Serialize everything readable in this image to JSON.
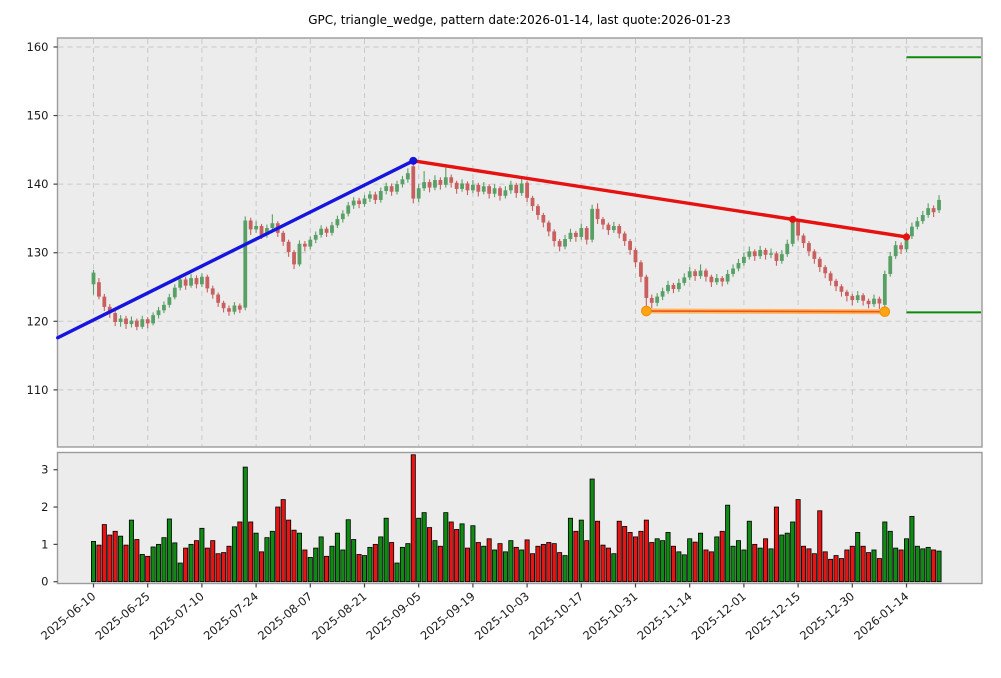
{
  "title": "GPC, triangle_wedge, pattern date:2026-01-14, last quote:2026-01-23",
  "chart_data": {
    "type": "candlestick",
    "symbol": "GPC",
    "pattern": "triangle_wedge",
    "pattern_date": "2026-01-14",
    "last_quote_date": "2026-01-23",
    "price_axis": {
      "ticks": [
        110,
        120,
        130,
        140,
        150,
        160
      ],
      "ylim": [
        101.6,
        161.3
      ]
    },
    "volume_axis": {
      "ticks": [
        0,
        1,
        2,
        3
      ],
      "ylim": [
        -0.05,
        3.46
      ]
    },
    "x_tick_labels": [
      "2025-06-10",
      "2025-06-25",
      "2025-07-10",
      "2025-07-24",
      "2025-08-07",
      "2025-08-21",
      "2025-09-05",
      "2025-09-19",
      "2025-10-03",
      "2025-10-17",
      "2025-10-31",
      "2025-11-14",
      "2025-12-01",
      "2025-12-15",
      "2025-12-30",
      "2026-01-14"
    ],
    "x_tick_day_indices": [
      0,
      10,
      20,
      30,
      40,
      50,
      60,
      70,
      80,
      90,
      100,
      110,
      120,
      130,
      140,
      150
    ],
    "grid": "dashed, price panel only",
    "legend": "none",
    "candles_format": [
      "open",
      "high",
      "low",
      "close",
      "volume"
    ],
    "candles": [
      [
        125.4,
        127.5,
        123.9,
        127.1,
        1.08
      ],
      [
        125.7,
        126.3,
        123.2,
        123.6,
        0.98
      ],
      [
        123.6,
        124.0,
        121.5,
        122.1,
        1.53
      ],
      [
        122.1,
        122.5,
        120.5,
        121.2,
        1.25
      ],
      [
        121.2,
        121.5,
        119.3,
        119.9,
        1.35
      ],
      [
        119.9,
        120.9,
        119.2,
        120.4,
        1.22
      ],
      [
        120.4,
        120.8,
        118.9,
        119.6,
        0.98
      ],
      [
        119.6,
        120.7,
        119.1,
        120.1,
        1.65
      ],
      [
        120.1,
        120.4,
        118.7,
        119.2,
        1.13
      ],
      [
        119.2,
        120.8,
        118.9,
        120.3,
        0.73
      ],
      [
        120.3,
        120.6,
        119.0,
        119.7,
        0.68
      ],
      [
        119.7,
        121.3,
        119.4,
        120.9,
        0.93
      ],
      [
        120.9,
        122.1,
        120.4,
        121.6,
        1.0
      ],
      [
        121.6,
        122.9,
        121.2,
        122.4,
        1.18
      ],
      [
        122.4,
        124.0,
        122.0,
        123.5,
        1.68
      ],
      [
        123.5,
        125.4,
        123.2,
        124.9,
        1.04
      ],
      [
        124.9,
        126.6,
        124.5,
        126.1,
        0.5
      ],
      [
        126.1,
        126.5,
        124.6,
        125.2,
        0.9
      ],
      [
        125.2,
        126.9,
        124.9,
        126.3,
        1.0
      ],
      [
        126.3,
        126.7,
        124.8,
        125.4,
        1.1
      ],
      [
        125.4,
        127.0,
        125.0,
        126.5,
        1.43
      ],
      [
        126.5,
        126.8,
        124.2,
        124.8,
        0.9
      ],
      [
        124.8,
        125.2,
        123.3,
        123.9,
        1.1
      ],
      [
        123.9,
        124.2,
        122.1,
        122.7,
        0.75
      ],
      [
        122.7,
        123.0,
        121.3,
        121.9,
        0.78
      ],
      [
        121.9,
        122.3,
        120.8,
        121.4,
        0.95
      ],
      [
        121.4,
        122.8,
        121.0,
        122.3,
        1.47
      ],
      [
        122.3,
        122.6,
        121.2,
        121.7,
        1.6
      ],
      [
        122.0,
        135.3,
        121.6,
        134.7,
        3.07
      ],
      [
        134.7,
        135.1,
        132.6,
        133.4,
        1.6
      ],
      [
        133.4,
        134.6,
        132.9,
        133.9,
        1.3
      ],
      [
        133.9,
        134.2,
        132.0,
        132.6,
        0.8
      ],
      [
        132.6,
        134.1,
        132.2,
        133.6,
        1.18
      ],
      [
        133.6,
        135.6,
        133.2,
        134.3,
        1.35
      ],
      [
        134.3,
        134.6,
        132.3,
        132.9,
        2.0
      ],
      [
        132.9,
        133.2,
        131.0,
        131.6,
        2.2
      ],
      [
        131.6,
        131.9,
        129.4,
        130.1,
        1.65
      ],
      [
        130.1,
        130.4,
        127.6,
        128.3,
        1.38
      ],
      [
        128.3,
        131.8,
        128.0,
        131.3,
        1.3
      ],
      [
        131.3,
        131.7,
        130.2,
        130.9,
        0.85
      ],
      [
        130.9,
        132.4,
        130.5,
        131.9,
        0.65
      ],
      [
        131.9,
        133.1,
        131.4,
        132.6,
        0.9
      ],
      [
        132.6,
        134.0,
        132.2,
        133.5,
        1.2
      ],
      [
        133.5,
        133.8,
        132.3,
        132.9,
        0.68
      ],
      [
        132.9,
        134.5,
        132.5,
        134.0,
        0.95
      ],
      [
        134.0,
        135.4,
        133.6,
        134.9,
        1.3
      ],
      [
        134.9,
        136.2,
        134.4,
        135.7,
        0.85
      ],
      [
        135.7,
        137.4,
        135.3,
        136.9,
        1.66
      ],
      [
        136.9,
        138.1,
        136.4,
        137.6,
        1.13
      ],
      [
        137.6,
        138.0,
        136.5,
        137.1,
        0.73
      ],
      [
        137.1,
        138.4,
        136.7,
        137.9,
        0.7
      ],
      [
        137.9,
        139.0,
        137.4,
        138.5,
        0.92
      ],
      [
        138.5,
        138.9,
        137.1,
        137.7,
        1.0
      ],
      [
        137.7,
        139.5,
        137.3,
        139.0,
        1.2
      ],
      [
        139.0,
        140.2,
        138.5,
        139.7,
        1.7
      ],
      [
        139.7,
        140.1,
        138.3,
        138.9,
        1.05
      ],
      [
        138.9,
        140.5,
        138.5,
        140.0,
        0.5
      ],
      [
        140.0,
        141.2,
        139.5,
        140.7,
        0.92
      ],
      [
        140.7,
        142.3,
        140.2,
        141.6,
        1.02
      ],
      [
        142.6,
        143.6,
        137.2,
        137.9,
        3.4
      ],
      [
        137.9,
        140.0,
        137.4,
        139.4,
        1.7
      ],
      [
        139.4,
        141.9,
        139.0,
        140.3,
        1.85
      ],
      [
        140.3,
        140.7,
        138.8,
        139.5,
        1.45
      ],
      [
        139.5,
        141.3,
        139.1,
        140.6,
        1.1
      ],
      [
        140.6,
        141.0,
        139.2,
        139.9,
        0.95
      ],
      [
        139.9,
        142.4,
        139.5,
        141.0,
        1.85
      ],
      [
        141.0,
        141.4,
        139.5,
        140.2,
        1.6
      ],
      [
        140.2,
        140.5,
        138.6,
        139.3,
        1.4
      ],
      [
        139.3,
        140.7,
        138.9,
        140.1,
        1.55
      ],
      [
        140.1,
        140.4,
        138.4,
        139.1,
        0.9
      ],
      [
        139.1,
        140.6,
        138.7,
        139.9,
        1.5
      ],
      [
        139.9,
        140.2,
        138.2,
        138.9,
        1.05
      ],
      [
        138.9,
        140.3,
        138.5,
        139.7,
        0.95
      ],
      [
        139.7,
        140.0,
        137.9,
        138.6,
        1.15
      ],
      [
        138.6,
        140.0,
        138.1,
        139.4,
        0.85
      ],
      [
        139.4,
        139.7,
        137.6,
        138.3,
        1.02
      ],
      [
        138.3,
        139.7,
        137.9,
        139.1,
        0.8
      ],
      [
        139.1,
        140.5,
        138.6,
        139.9,
        1.1
      ],
      [
        139.9,
        140.2,
        138.0,
        138.7,
        0.92
      ],
      [
        138.7,
        140.8,
        138.3,
        140.1,
        0.85
      ],
      [
        140.2,
        140.5,
        137.4,
        138.0,
        1.12
      ],
      [
        138.0,
        138.3,
        136.1,
        136.8,
        0.75
      ],
      [
        136.8,
        137.1,
        134.8,
        135.5,
        0.95
      ],
      [
        135.5,
        135.8,
        133.7,
        134.4,
        1.0
      ],
      [
        134.4,
        134.7,
        132.4,
        133.1,
        1.05
      ],
      [
        133.1,
        133.4,
        130.9,
        131.7,
        1.02
      ],
      [
        131.7,
        132.0,
        130.2,
        130.9,
        0.78
      ],
      [
        130.9,
        132.6,
        130.5,
        132.0,
        0.7
      ],
      [
        132.0,
        133.5,
        131.6,
        132.9,
        1.7
      ],
      [
        132.9,
        133.2,
        131.6,
        132.3,
        1.35
      ],
      [
        132.3,
        134.2,
        131.9,
        133.6,
        1.65
      ],
      [
        133.6,
        133.9,
        131.2,
        131.9,
        1.1
      ],
      [
        131.9,
        137.0,
        131.5,
        136.4,
        2.75
      ],
      [
        136.4,
        137.2,
        134.2,
        134.9,
        1.62
      ],
      [
        134.9,
        135.2,
        133.4,
        134.1,
        0.98
      ],
      [
        134.1,
        134.4,
        132.6,
        133.3,
        0.9
      ],
      [
        133.3,
        134.5,
        132.9,
        133.9,
        0.75
      ],
      [
        133.9,
        134.2,
        132.1,
        132.8,
        1.62
      ],
      [
        132.8,
        133.1,
        131.0,
        131.7,
        1.48
      ],
      [
        131.7,
        132.0,
        129.7,
        130.4,
        1.32
      ],
      [
        130.4,
        130.7,
        127.9,
        128.6,
        1.2
      ],
      [
        128.6,
        128.9,
        125.7,
        126.5,
        1.35
      ],
      [
        126.5,
        126.8,
        121.5,
        123.4,
        1.65
      ],
      [
        123.4,
        123.9,
        121.9,
        122.7,
        1.05
      ],
      [
        122.7,
        124.1,
        122.2,
        123.6,
        1.15
      ],
      [
        123.6,
        124.9,
        123.1,
        124.4,
        1.1
      ],
      [
        124.4,
        125.9,
        124.0,
        125.3,
        1.32
      ],
      [
        125.3,
        125.6,
        124.1,
        124.7,
        0.95
      ],
      [
        124.7,
        126.2,
        124.3,
        125.6,
        0.8
      ],
      [
        125.6,
        127.0,
        125.2,
        126.4,
        0.72
      ],
      [
        126.4,
        127.9,
        126.0,
        127.3,
        1.15
      ],
      [
        127.3,
        127.6,
        125.9,
        126.6,
        1.06
      ],
      [
        126.6,
        128.3,
        126.2,
        127.4,
        1.3
      ],
      [
        127.4,
        127.7,
        125.8,
        126.5,
        0.85
      ],
      [
        126.5,
        126.8,
        125.0,
        125.7,
        0.8
      ],
      [
        125.7,
        126.9,
        125.3,
        126.3,
        1.2
      ],
      [
        126.3,
        126.6,
        125.1,
        125.8,
        1.35
      ],
      [
        125.8,
        127.5,
        125.4,
        126.9,
        2.05
      ],
      [
        126.9,
        128.3,
        126.5,
        127.7,
        0.95
      ],
      [
        127.7,
        129.1,
        127.3,
        128.5,
        1.1
      ],
      [
        128.5,
        130.0,
        128.1,
        129.4,
        0.85
      ],
      [
        129.4,
        130.9,
        129.0,
        130.2,
        1.62
      ],
      [
        130.2,
        130.5,
        128.8,
        129.5,
        1.0
      ],
      [
        129.5,
        131.0,
        129.1,
        130.4,
        0.9
      ],
      [
        130.4,
        130.7,
        129.0,
        129.7,
        1.15
      ],
      [
        129.7,
        130.6,
        129.2,
        129.9,
        0.88
      ],
      [
        129.9,
        130.2,
        128.1,
        128.8,
        2.0
      ],
      [
        128.8,
        130.4,
        128.4,
        129.8,
        1.25
      ],
      [
        129.8,
        131.9,
        129.4,
        131.3,
        1.3
      ],
      [
        131.3,
        135.1,
        130.9,
        134.6,
        1.6
      ],
      [
        134.6,
        135.0,
        131.8,
        132.5,
        2.2
      ],
      [
        132.5,
        132.8,
        130.7,
        131.4,
        0.95
      ],
      [
        131.4,
        131.7,
        129.5,
        130.2,
        0.88
      ],
      [
        130.2,
        130.5,
        128.4,
        129.1,
        0.75
      ],
      [
        129.1,
        129.4,
        127.2,
        127.9,
        1.9
      ],
      [
        127.9,
        128.2,
        126.3,
        127.0,
        0.8
      ],
      [
        127.0,
        127.3,
        125.2,
        125.9,
        0.6
      ],
      [
        125.9,
        126.2,
        124.4,
        125.1,
        0.7
      ],
      [
        125.1,
        125.4,
        123.6,
        124.3,
        0.62
      ],
      [
        124.3,
        124.6,
        122.9,
        123.7,
        0.85
      ],
      [
        123.7,
        124.0,
        122.3,
        123.1,
        0.95
      ],
      [
        123.1,
        124.4,
        122.7,
        123.8,
        1.32
      ],
      [
        123.8,
        124.1,
        122.3,
        123.0,
        0.95
      ],
      [
        123.0,
        123.3,
        121.9,
        122.5,
        0.78
      ],
      [
        122.5,
        123.9,
        122.1,
        123.3,
        0.85
      ],
      [
        123.3,
        123.6,
        121.8,
        122.6,
        0.62
      ],
      [
        122.4,
        127.4,
        121.4,
        126.9,
        1.6
      ],
      [
        126.9,
        130.1,
        126.5,
        129.5,
        1.35
      ],
      [
        129.5,
        131.7,
        129.1,
        131.1,
        0.9
      ],
      [
        131.1,
        131.5,
        129.8,
        130.5,
        0.85
      ],
      [
        130.5,
        133.0,
        130.1,
        132.4,
        1.15
      ],
      [
        132.4,
        134.4,
        132.0,
        133.8,
        1.75
      ],
      [
        133.8,
        135.2,
        133.4,
        134.6,
        0.95
      ],
      [
        134.6,
        136.1,
        134.2,
        135.5,
        0.88
      ],
      [
        135.5,
        137.2,
        135.1,
        136.5,
        0.92
      ],
      [
        136.5,
        136.9,
        135.2,
        135.9,
        0.85
      ],
      [
        136.2,
        138.4,
        135.8,
        137.7,
        0.82
      ]
    ],
    "overlays": {
      "blue_trendline": {
        "color": "#1515dd",
        "from": {
          "day": -6.6,
          "price": 117.6
        },
        "to": {
          "day": 59,
          "price": 143.4
        },
        "marker_days": [
          59
        ]
      },
      "red_trendline": {
        "color": "#e61111",
        "from": {
          "day": 59,
          "price": 143.4
        },
        "to": {
          "day": 150,
          "price": 132.3
        },
        "marker_days": [
          129,
          150
        ]
      },
      "orange_support_line": {
        "color": "#ff9d2e",
        "from": {
          "day": 102,
          "price": 121.5
        },
        "to": {
          "day": 146,
          "price": 121.4
        },
        "marker_days": [
          102,
          146
        ]
      },
      "green_level_top": {
        "color": "#0b8a0b",
        "price": 158.5,
        "from_day": 150,
        "to_right_edge": true
      },
      "green_level_bottom": {
        "color": "#0b8a0b",
        "price": 121.3,
        "from_day": 150,
        "to_right_edge": true
      }
    },
    "colors": {
      "candle_up": "#58a066",
      "candle_down": "#c95f5e",
      "volume_up": "#0f8a12",
      "volume_down": "#e81414",
      "plot_bg": "#ececec",
      "grid": "#c9c9c9",
      "spine": "#9b9b9b",
      "tick_text": "#1a1a1a"
    }
  }
}
